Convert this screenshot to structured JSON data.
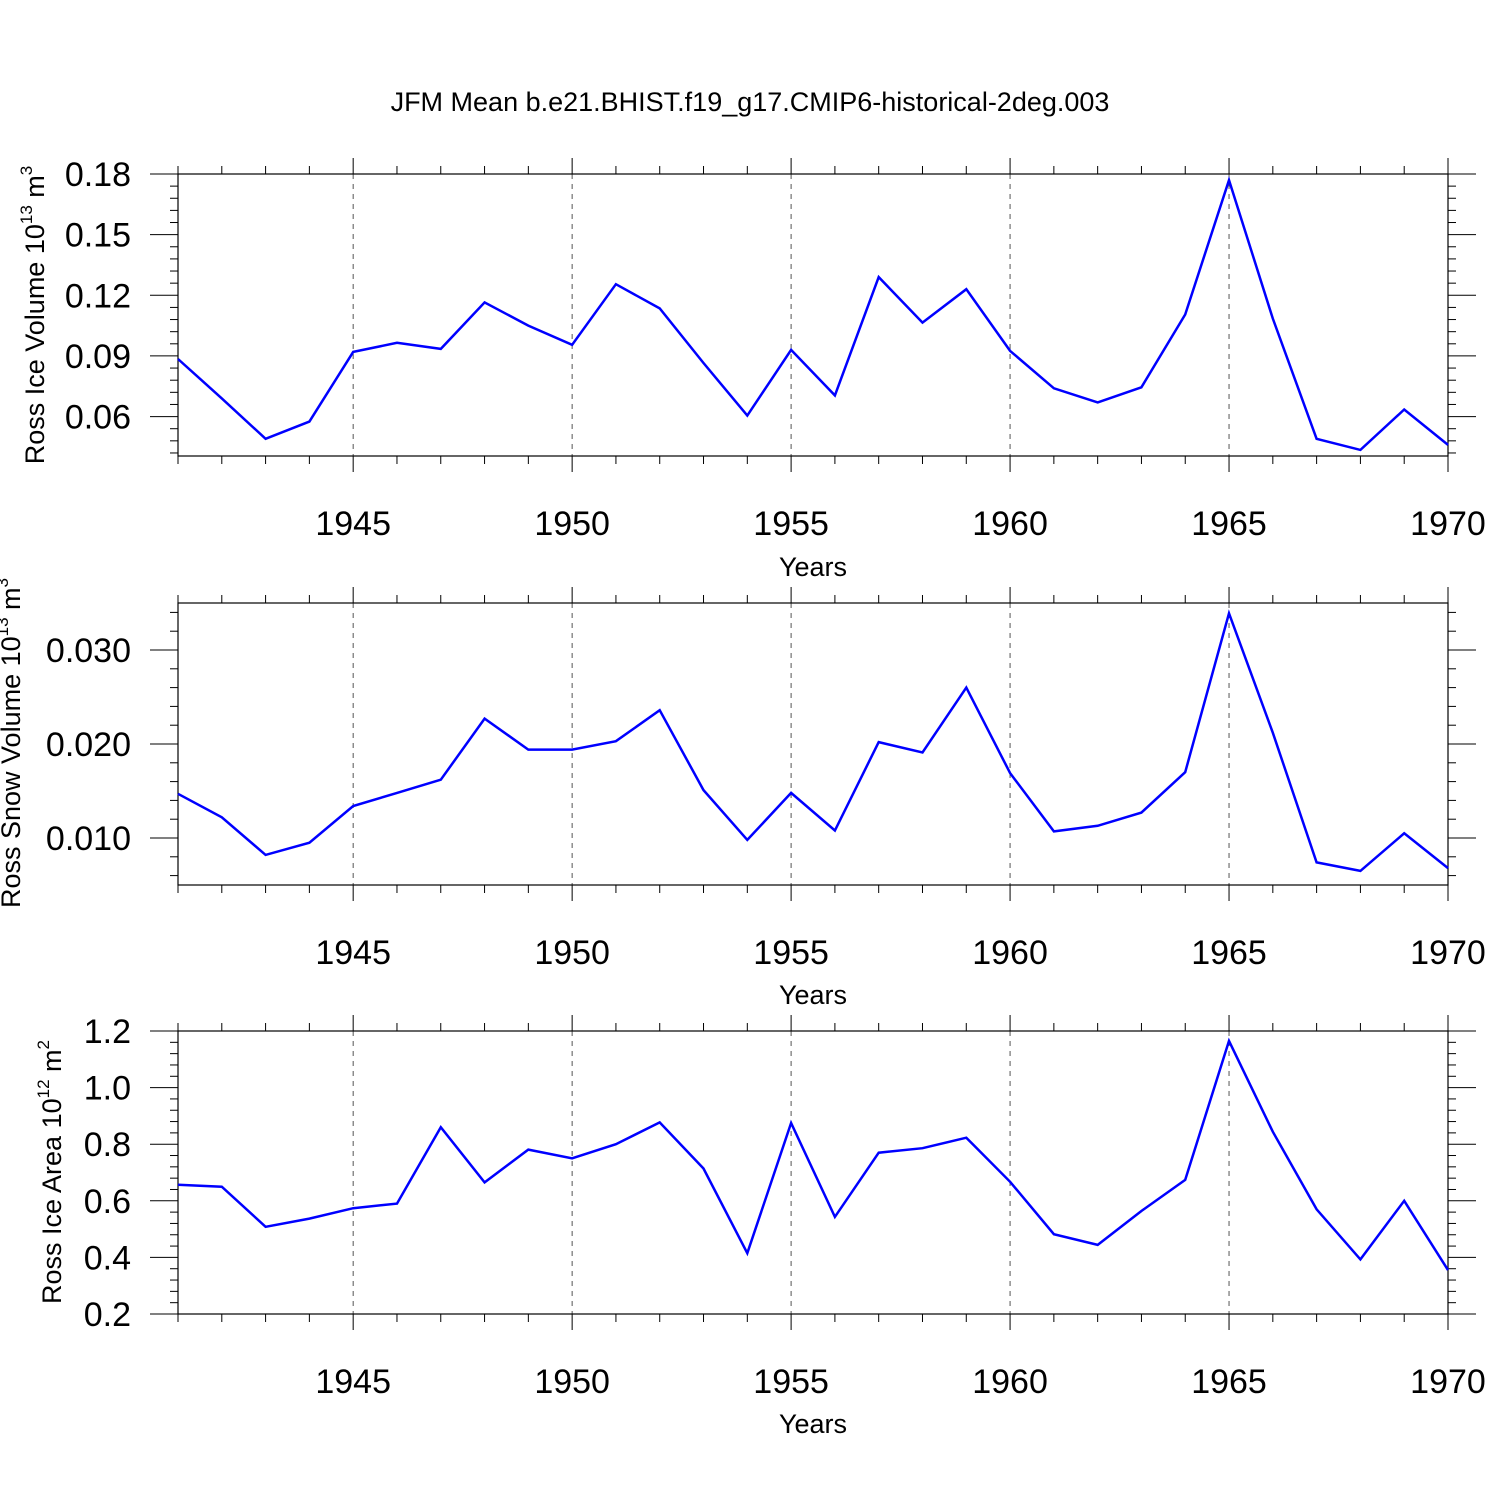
{
  "title": "JFM Mean b.e21.BHIST.f19_g17.CMIP6-historical-2deg.003",
  "colors": {
    "line": "#0000ff",
    "axis": "#000000",
    "grid": "#555555"
  },
  "chart_data": [
    {
      "type": "line",
      "ylabel_main": "Ross Ice Volume 10",
      "ylabel_exp": "13",
      "ylabel_unit": " m",
      "ylabel_unit_exp": "3",
      "xlabel": "Years",
      "xlim": [
        1941,
        1970
      ],
      "ylim": [
        0.0405,
        0.18
      ],
      "xticks": [
        1945,
        1950,
        1955,
        1960,
        1965,
        1970
      ],
      "xtick_labels": [
        "1945",
        "1950",
        "1955",
        "1960",
        "1965",
        "1970"
      ],
      "yticks": [
        0.06,
        0.09,
        0.12,
        0.15,
        0.18
      ],
      "ytick_labels": [
        "0.06",
        "0.09",
        "0.12",
        "0.15",
        "0.18"
      ],
      "y_minor_step": 0.006,
      "x_grid": true,
      "x": [
        1941,
        1942,
        1943,
        1944,
        1945,
        1946,
        1947,
        1948,
        1949,
        1950,
        1951,
        1952,
        1953,
        1954,
        1955,
        1956,
        1957,
        1958,
        1959,
        1960,
        1961,
        1962,
        1963,
        1964,
        1965,
        1966,
        1967,
        1968,
        1969,
        1970
      ],
      "series": [
        {
          "name": "Ross Ice Volume",
          "values": [
            0.0885,
            0.069,
            0.049,
            0.0575,
            0.092,
            0.0965,
            0.0935,
            0.1165,
            0.105,
            0.0955,
            0.1255,
            0.1135,
            0.0865,
            0.0605,
            0.093,
            0.0705,
            0.129,
            0.1065,
            0.123,
            0.0925,
            0.074,
            0.067,
            0.0745,
            0.1105,
            0.177,
            0.1085,
            0.049,
            0.0435,
            0.0635,
            0.046
          ]
        }
      ]
    },
    {
      "type": "line",
      "ylabel_main": "Ross Snow Volume 10",
      "ylabel_exp": "13",
      "ylabel_unit": " m",
      "ylabel_unit_exp": "3",
      "xlabel": "Years",
      "xlim": [
        1941,
        1970
      ],
      "ylim": [
        0.005,
        0.035
      ],
      "xticks": [
        1945,
        1950,
        1955,
        1960,
        1965,
        1970
      ],
      "xtick_labels": [
        "1945",
        "1950",
        "1955",
        "1960",
        "1965",
        "1970"
      ],
      "yticks": [
        0.01,
        0.02,
        0.03
      ],
      "ytick_labels": [
        "0.010",
        "0.020",
        "0.030"
      ],
      "y_minor_step": 0.002,
      "x_grid": true,
      "x": [
        1941,
        1942,
        1943,
        1944,
        1945,
        1946,
        1947,
        1948,
        1949,
        1950,
        1951,
        1952,
        1953,
        1954,
        1955,
        1956,
        1957,
        1958,
        1959,
        1960,
        1961,
        1962,
        1963,
        1964,
        1965,
        1966,
        1967,
        1968,
        1969,
        1970
      ],
      "series": [
        {
          "name": "Ross Snow Volume",
          "values": [
            0.0147,
            0.0122,
            0.0082,
            0.0095,
            0.0134,
            0.0148,
            0.0162,
            0.0227,
            0.0194,
            0.0194,
            0.0203,
            0.0236,
            0.0151,
            0.0098,
            0.0148,
            0.0108,
            0.0202,
            0.0191,
            0.026,
            0.0169,
            0.0107,
            0.0113,
            0.0127,
            0.017,
            0.0339,
            0.0212,
            0.0074,
            0.0065,
            0.0105,
            0.0068
          ]
        }
      ]
    },
    {
      "type": "line",
      "ylabel_main": "Ross Ice Area 10",
      "ylabel_exp": "12",
      "ylabel_unit": " m",
      "ylabel_unit_exp": "2",
      "xlabel": "Years",
      "xlim": [
        1941,
        1970
      ],
      "ylim": [
        0.2,
        1.2
      ],
      "xticks": [
        1945,
        1950,
        1955,
        1960,
        1965,
        1970
      ],
      "xtick_labels": [
        "1945",
        "1950",
        "1955",
        "1960",
        "1965",
        "1970"
      ],
      "yticks": [
        0.2,
        0.4,
        0.6,
        0.8,
        1.0,
        1.2
      ],
      "ytick_labels": [
        "0.2",
        "0.4",
        "0.6",
        "0.8",
        "1.0",
        "1.2"
      ],
      "y_minor_step": 0.04,
      "x_grid": true,
      "x": [
        1941,
        1942,
        1943,
        1944,
        1945,
        1946,
        1947,
        1948,
        1949,
        1950,
        1951,
        1952,
        1953,
        1954,
        1955,
        1956,
        1957,
        1958,
        1959,
        1960,
        1961,
        1962,
        1963,
        1964,
        1965,
        1966,
        1967,
        1968,
        1969,
        1970
      ],
      "series": [
        {
          "name": "Ross Ice Area",
          "values": [
            0.657,
            0.65,
            0.508,
            0.537,
            0.574,
            0.59,
            0.86,
            0.665,
            0.781,
            0.75,
            0.8,
            0.877,
            0.714,
            0.415,
            0.875,
            0.543,
            0.77,
            0.786,
            0.823,
            0.667,
            0.482,
            0.444,
            0.564,
            0.674,
            1.165,
            0.844,
            0.57,
            0.393,
            0.6,
            0.355
          ]
        }
      ]
    }
  ]
}
